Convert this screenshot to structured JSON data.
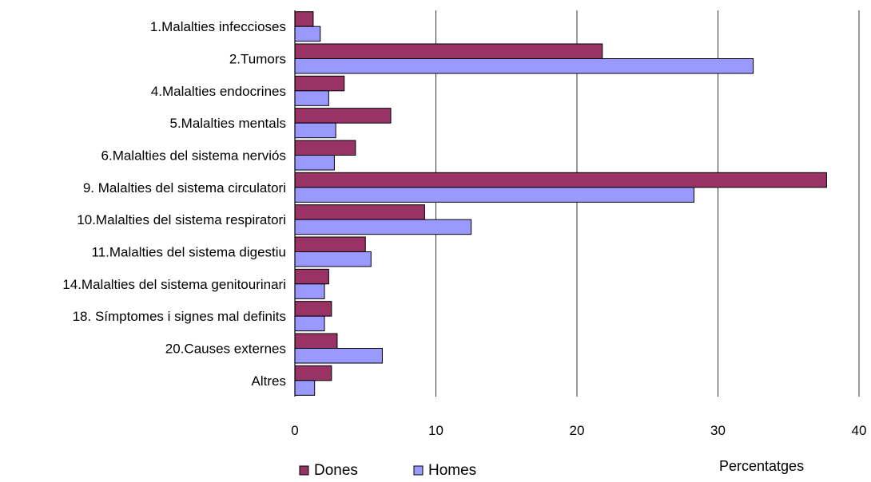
{
  "chart_data": {
    "type": "bar",
    "orientation": "horizontal",
    "title": "",
    "xlabel": "Percentatges",
    "ylabel": "",
    "xlim": [
      0,
      40
    ],
    "xticks": [
      0,
      10,
      20,
      30,
      40
    ],
    "grid": true,
    "legend_position": "bottom",
    "categories": [
      "1.Malalties infeccioses",
      "2.Tumors",
      "4.Malalties endocrines",
      "5.Malalties mentals",
      "6.Malalties del sistema nerviós",
      "9. Malalties del sistema circulatori",
      "10.Malalties del sistema respiratori",
      "11.Malalties del sistema digestiu",
      "14.Malalties del sistema genitourinari",
      "18. Símptomes i signes mal definits",
      "20.Causes externes",
      "Altres"
    ],
    "series": [
      {
        "name": "Dones",
        "color": "#993366",
        "values": [
          1.3,
          21.8,
          3.5,
          6.8,
          4.3,
          37.7,
          9.2,
          5.0,
          2.4,
          2.6,
          3.0,
          2.6
        ]
      },
      {
        "name": "Homes",
        "color": "#9999ff",
        "values": [
          1.8,
          32.5,
          2.4,
          2.9,
          2.8,
          28.3,
          12.5,
          5.4,
          2.1,
          2.1,
          6.2,
          1.4
        ]
      }
    ]
  }
}
